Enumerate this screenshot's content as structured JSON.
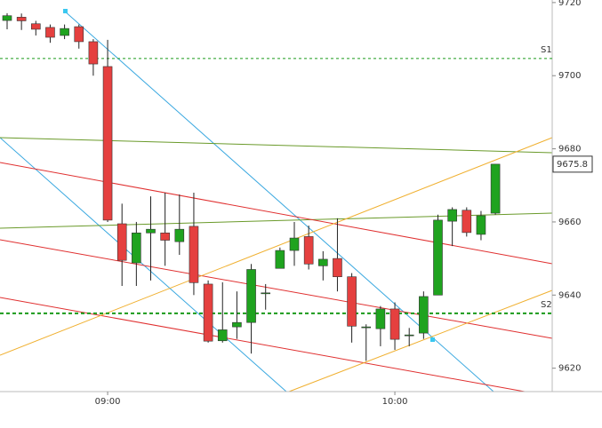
{
  "chart_data": {
    "type": "candlestick",
    "categories": [
      null,
      null,
      null,
      null,
      null,
      null,
      null,
      "09:00",
      null,
      null,
      null,
      null,
      null,
      null,
      null,
      null,
      null,
      null,
      null,
      null,
      null,
      null,
      null,
      null,
      null,
      null,
      null,
      "10:00",
      null,
      null,
      null,
      null,
      null,
      null,
      null
    ],
    "open": [
      9715.1,
      9716,
      9714.2,
      9713.2,
      9711,
      9713.4,
      9709.3,
      9702.5,
      9659.5,
      9648.8,
      9657,
      9657,
      9654.6,
      9658.8,
      9643,
      9627.5,
      9631.3,
      9632.5,
      9640.5,
      9647.3,
      9652.2,
      9656,
      9648,
      9650,
      9645,
      9631.3,
      9630.8,
      9636.2,
      9628.9,
      9629.6,
      9640,
      9660.2,
      9663.2,
      9656.6,
      9662.4
    ],
    "high": [
      9717.1,
      9717,
      9715,
      9714,
      9714,
      9714,
      9710,
      9709.8,
      9665,
      9660,
      9667,
      9668,
      9667.5,
      9668,
      9644,
      9643.5,
      9641,
      9648.5,
      9643,
      9653,
      9660,
      9659,
      9652,
      9661,
      9646,
      9632,
      9637,
      9638,
      9631,
      9641,
      9662,
      9664,
      9664,
      9663,
      9675.8
    ],
    "low": [
      9712.7,
      9712.5,
      9711,
      9709,
      9710,
      9707.4,
      9700,
      9660,
      9642.5,
      9642.5,
      9644,
      9648,
      9651,
      9640,
      9627,
      9627,
      9628,
      9624,
      9636,
      9647.5,
      9648,
      9647,
      9644,
      9641,
      9627,
      9622,
      9626,
      9625,
      9626,
      9628,
      9640,
      9653.4,
      9656,
      9655,
      9662
    ],
    "close": [
      9716.4,
      9715,
      9712.7,
      9710.5,
      9712.9,
      9709.3,
      9703.2,
      9660.5,
      9649.5,
      9657,
      9658,
      9655,
      9658,
      9643.4,
      9627.4,
      9630.5,
      9632.5,
      9647,
      9640.6,
      9652.2,
      9655.6,
      9648.5,
      9649.8,
      9645,
      9631.5,
      9631.3,
      9636.2,
      9627.9,
      9629.1,
      9639.6,
      9660.5,
      9663.4,
      9657.1,
      9661.7,
      9675.8
    ],
    "up_color": "#1fa31f",
    "down_color": "#e5403f",
    "ylim": [
      9613.6,
      9720.7
    ],
    "yticks": [
      9620,
      9640,
      9660,
      9680,
      9700,
      9720
    ],
    "levels": [
      {
        "label": "S1",
        "value": 9704.7
      },
      {
        "label": "S2",
        "value": 9635
      }
    ],
    "last_price": 9675.8
  }
}
